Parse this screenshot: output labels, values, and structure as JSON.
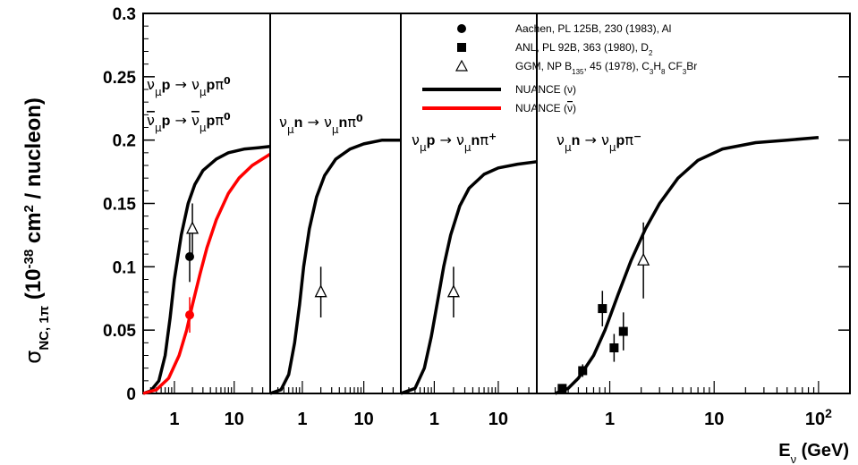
{
  "chart_data": {
    "type": "line",
    "ylabel": "σ_NC, 1π (10^-38 cm^2 / nucleon)",
    "xlabel": "E_ν (GeV)",
    "ylim": [
      0,
      0.3
    ],
    "y_ticks": [
      "0",
      "0.05",
      "0.1",
      "0.15",
      "0.2",
      "0.25",
      "0.3"
    ],
    "legend": {
      "entries": [
        {
          "marker": "circle",
          "label": "Aachen, PL 125B, 230 (1983), Al"
        },
        {
          "marker": "square",
          "label": "ANL, PL 92B, 363 (1980), D2"
        },
        {
          "marker": "open-triangle",
          "label": "GGM, NP B135, 45 (1978), C3H8 CF3Br"
        },
        {
          "marker": "line",
          "color": "#000000",
          "label": "NUANCE (ν)"
        },
        {
          "marker": "line",
          "color": "#ff0000",
          "label": "NUANCE (ν̄)"
        }
      ]
    },
    "panels": [
      {
        "reactions": [
          {
            "text": "νμp → νμpπ0",
            "color": "#000000"
          },
          {
            "text": "ν̄μp → ν̄μpπ0",
            "color": "#ff0000"
          }
        ],
        "xlim": [
          0.3,
          40
        ],
        "x_tick_labels": [
          {
            "value": 1,
            "text": "1"
          },
          {
            "value": 10,
            "text": "10"
          }
        ],
        "curves": [
          {
            "name": "NUANCE (ν)",
            "color": "#000000",
            "points": [
              [
                0.3,
                0
              ],
              [
                0.4,
                0.002
              ],
              [
                0.55,
                0.01
              ],
              [
                0.7,
                0.03
              ],
              [
                0.85,
                0.06
              ],
              [
                1.0,
                0.09
              ],
              [
                1.3,
                0.125
              ],
              [
                1.7,
                0.15
              ],
              [
                2.2,
                0.165
              ],
              [
                3,
                0.176
              ],
              [
                5,
                0.185
              ],
              [
                8,
                0.19
              ],
              [
                15,
                0.193
              ],
              [
                25,
                0.194
              ],
              [
                40,
                0.195
              ]
            ]
          },
          {
            "name": "NUANCE (ν̄)",
            "color": "#ff0000",
            "points": [
              [
                0.3,
                0
              ],
              [
                0.5,
                0.003
              ],
              [
                0.8,
                0.012
              ],
              [
                1.2,
                0.03
              ],
              [
                1.6,
                0.05
              ],
              [
                2.0,
                0.07
              ],
              [
                2.7,
                0.095
              ],
              [
                3.5,
                0.115
              ],
              [
                5,
                0.137
              ],
              [
                8,
                0.158
              ],
              [
                12,
                0.17
              ],
              [
                20,
                0.18
              ],
              [
                40,
                0.189
              ]
            ]
          }
        ],
        "points": [
          {
            "series": "Aachen",
            "marker": "circle",
            "color": "#000000",
            "x": 1.8,
            "y": 0.108,
            "err": [
              0.088,
              0.128
            ]
          },
          {
            "series": "GGM",
            "marker": "open-triangle",
            "color": "#000000",
            "x": 2.0,
            "y": 0.13,
            "err": [
              0.11,
              0.15
            ]
          },
          {
            "series": "Aachen",
            "marker": "circle",
            "color": "#ff0000",
            "x": 1.8,
            "y": 0.062,
            "err": [
              0.048,
              0.076
            ]
          }
        ]
      },
      {
        "reactions": [
          {
            "text": "νμn → νμnπ0",
            "color": "#000000"
          }
        ],
        "xlim": [
          0.3,
          40
        ],
        "x_tick_labels": [
          {
            "value": 1,
            "text": "1"
          },
          {
            "value": 10,
            "text": "10"
          }
        ],
        "curves": [
          {
            "name": "NUANCE (ν)",
            "color": "#000000",
            "points": [
              [
                0.3,
                0
              ],
              [
                0.45,
                0.003
              ],
              [
                0.6,
                0.015
              ],
              [
                0.75,
                0.04
              ],
              [
                0.9,
                0.07
              ],
              [
                1.05,
                0.1
              ],
              [
                1.3,
                0.13
              ],
              [
                1.7,
                0.155
              ],
              [
                2.3,
                0.172
              ],
              [
                3.5,
                0.185
              ],
              [
                6,
                0.193
              ],
              [
                10,
                0.197
              ],
              [
                20,
                0.2
              ],
              [
                40,
                0.2
              ]
            ]
          }
        ],
        "points": [
          {
            "series": "GGM",
            "marker": "open-triangle",
            "color": "#000000",
            "x": 2.0,
            "y": 0.08,
            "err": [
              0.06,
              0.1
            ]
          }
        ]
      },
      {
        "reactions": [
          {
            "text": "νμp → νμnπ+",
            "color": "#000000"
          }
        ],
        "xlim": [
          0.3,
          40
        ],
        "x_tick_labels": [
          {
            "value": 1,
            "text": "1"
          },
          {
            "value": 10,
            "text": "10"
          }
        ],
        "curves": [
          {
            "name": "NUANCE (ν)",
            "color": "#000000",
            "points": [
              [
                0.3,
                0
              ],
              [
                0.5,
                0.004
              ],
              [
                0.7,
                0.02
              ],
              [
                0.9,
                0.045
              ],
              [
                1.1,
                0.07
              ],
              [
                1.4,
                0.1
              ],
              [
                1.8,
                0.125
              ],
              [
                2.5,
                0.148
              ],
              [
                3.5,
                0.162
              ],
              [
                6,
                0.173
              ],
              [
                10,
                0.178
              ],
              [
                20,
                0.181
              ],
              [
                40,
                0.183
              ]
            ]
          }
        ],
        "points": [
          {
            "series": "GGM",
            "marker": "open-triangle",
            "color": "#000000",
            "x": 2.0,
            "y": 0.08,
            "err": [
              0.06,
              0.1
            ]
          }
        ]
      },
      {
        "reactions": [
          {
            "text": "νμn → νμpπ-",
            "color": "#000000"
          }
        ],
        "xlim": [
          0.2,
          200
        ],
        "x_tick_labels": [
          {
            "value": 1,
            "text": "1"
          },
          {
            "value": 10,
            "text": "10"
          },
          {
            "value": 100,
            "text": "10^2"
          }
        ],
        "curves": [
          {
            "name": "NUANCE (ν)",
            "color": "#000000",
            "points": [
              [
                0.3,
                0
              ],
              [
                0.4,
                0.004
              ],
              [
                0.5,
                0.012
              ],
              [
                0.7,
                0.03
              ],
              [
                0.9,
                0.05
              ],
              [
                1.2,
                0.078
              ],
              [
                1.6,
                0.105
              ],
              [
                2.2,
                0.13
              ],
              [
                3,
                0.15
              ],
              [
                4.5,
                0.17
              ],
              [
                7,
                0.184
              ],
              [
                12,
                0.193
              ],
              [
                25,
                0.198
              ],
              [
                50,
                0.2
              ],
              [
                100,
                0.202
              ]
            ]
          }
        ],
        "points": [
          {
            "series": "ANL",
            "marker": "square",
            "color": "#000000",
            "x": 0.35,
            "y": 0.004,
            "err": [
              0.002,
              0.006
            ]
          },
          {
            "series": "ANL",
            "marker": "square",
            "color": "#000000",
            "x": 0.55,
            "y": 0.018,
            "err": [
              0.013,
              0.023
            ]
          },
          {
            "series": "ANL",
            "marker": "square",
            "color": "#000000",
            "x": 0.85,
            "y": 0.067,
            "err": [
              0.053,
              0.081
            ]
          },
          {
            "series": "ANL",
            "marker": "square",
            "color": "#000000",
            "x": 1.1,
            "y": 0.036,
            "err": [
              0.025,
              0.047
            ]
          },
          {
            "series": "ANL",
            "marker": "square",
            "color": "#000000",
            "x": 1.35,
            "y": 0.049,
            "err": [
              0.034,
              0.064
            ]
          },
          {
            "series": "GGM",
            "marker": "open-triangle",
            "color": "#000000",
            "x": 2.1,
            "y": 0.105,
            "err": [
              0.075,
              0.135
            ]
          }
        ]
      }
    ]
  }
}
